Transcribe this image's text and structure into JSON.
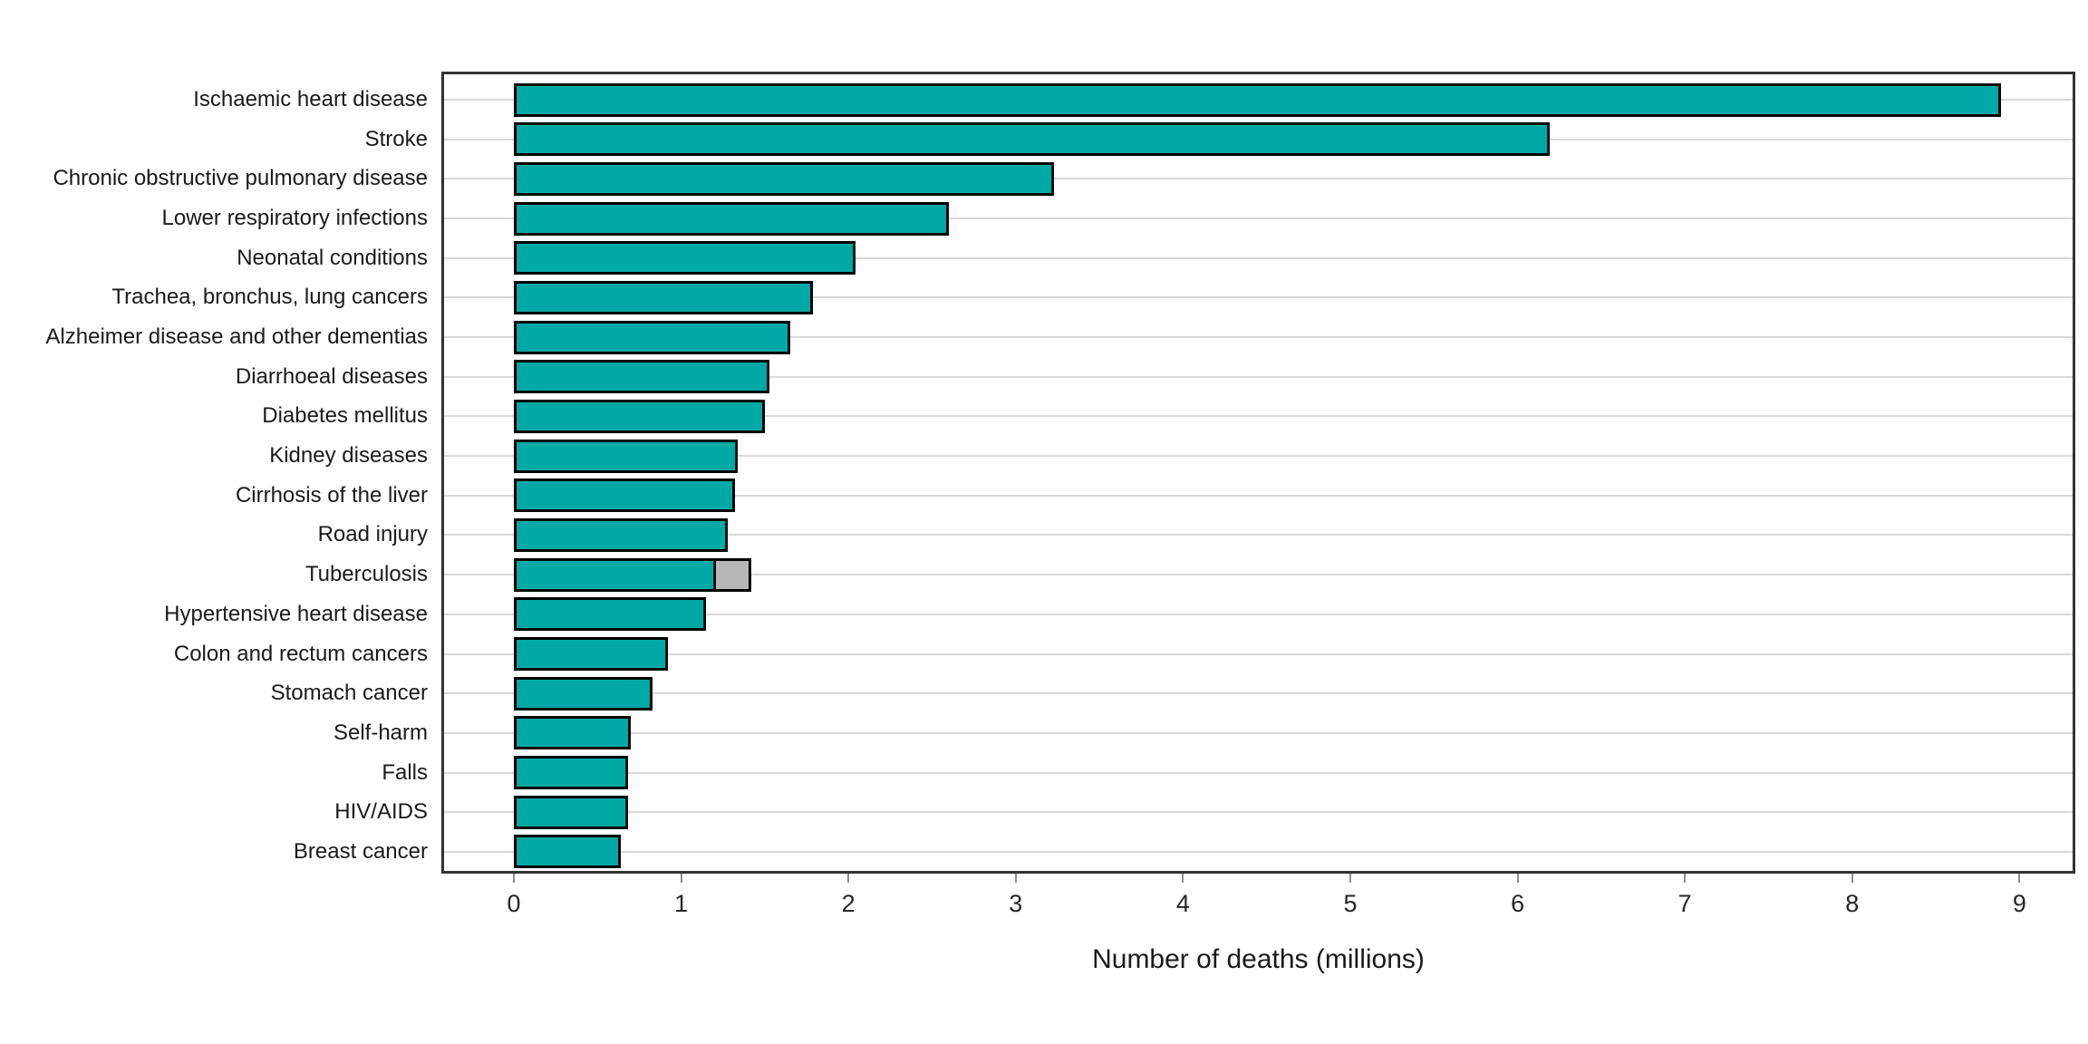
{
  "chart_data": {
    "type": "bar",
    "orientation": "horizontal",
    "title": "",
    "xlabel": "Number of deaths (millions)",
    "ylabel": "",
    "xlim": [
      0,
      9.3
    ],
    "x_ticks": [
      0,
      1,
      2,
      3,
      4,
      5,
      6,
      7,
      8,
      9
    ],
    "legend": "none",
    "grid": "horizontal category gridlines only, light gray",
    "categories": [
      "Ischaemic heart disease",
      "Stroke",
      "Chronic obstructive pulmonary disease",
      "Lower respiratory infections",
      "Neonatal conditions",
      "Trachea, bronchus, lung cancers",
      "Alzheimer disease and other dementias",
      "Diarrhoeal diseases",
      "Diabetes mellitus",
      "Kidney diseases",
      "Cirrhosis of the liver",
      "Road injury",
      "Tuberculosis",
      "Hypertensive heart disease",
      "Colon and rectum cancers",
      "Stomach cancer",
      "Self-harm",
      "Falls",
      "HIV/AIDS",
      "Breast cancer"
    ],
    "series": [
      {
        "name": "deaths-millions",
        "color": "#00a9a6",
        "values": [
          8.89,
          6.19,
          3.23,
          2.6,
          2.04,
          1.79,
          1.65,
          1.53,
          1.5,
          1.34,
          1.32,
          1.28,
          1.21,
          1.15,
          0.92,
          0.83,
          0.7,
          0.68,
          0.68,
          0.64
        ]
      },
      {
        "name": "gray-extension-segment",
        "color": "#b7b7b7",
        "values": [
          0,
          0,
          0,
          0,
          0,
          0,
          0,
          0,
          0,
          0,
          0,
          0,
          0.21,
          0,
          0,
          0,
          0,
          0,
          0,
          0
        ]
      }
    ],
    "bar_border_color": "#000000"
  },
  "colors": {
    "bar_teal": "#00a9a6",
    "bar_gray": "#b7b7b7",
    "bar_border": "#000000",
    "gridline": "#d9d9d9",
    "panel_border": "#333333",
    "tick_mark": "#8c8c8c",
    "text": "#1a1a1a",
    "background": "#ffffff"
  }
}
